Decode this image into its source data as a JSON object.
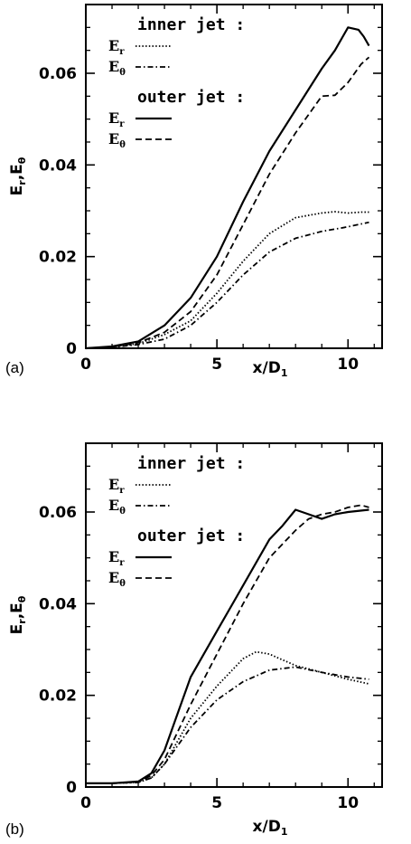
{
  "chart_data": [
    {
      "type": "line",
      "panel_label": "(a)",
      "xlabel": "x/D",
      "xlabel_sub": "1",
      "ylabel": "E_r,E_θ",
      "xlim": [
        0,
        11.3
      ],
      "ylim": [
        0,
        0.075
      ],
      "xticks": [
        0,
        5,
        10
      ],
      "yticks": [
        0,
        0.02,
        0.04,
        0.06
      ],
      "ytick_labels": [
        "0",
        "0.02",
        "0.04",
        "0.06"
      ],
      "xtick_labels": [
        "0",
        "5",
        "10"
      ],
      "legend": {
        "groups": [
          {
            "title": "inner jet :",
            "entries": [
              {
                "symbol": "E",
                "sub": "r",
                "style": "dotted"
              },
              {
                "symbol": "E",
                "sub": "θ",
                "style": "dashdot"
              }
            ]
          },
          {
            "title": "outer jet :",
            "entries": [
              {
                "symbol": "E",
                "sub": "r",
                "style": "solid"
              },
              {
                "symbol": "E",
                "sub": "θ",
                "style": "dashed"
              }
            ]
          }
        ]
      },
      "series": [
        {
          "group": "inner jet",
          "component": "E_r",
          "style": "dotted",
          "x": [
            0,
            1,
            2,
            3,
            4,
            5,
            6,
            7,
            8,
            9,
            9.5,
            10,
            10.5,
            10.8
          ],
          "y": [
            0,
            0.0003,
            0.001,
            0.003,
            0.006,
            0.012,
            0.019,
            0.025,
            0.0285,
            0.0295,
            0.0298,
            0.0295,
            0.0297,
            0.0297
          ]
        },
        {
          "group": "inner jet",
          "component": "E_θ",
          "style": "dashdot",
          "x": [
            0,
            1,
            2,
            3,
            4,
            5,
            6,
            7,
            8,
            9,
            10,
            10.8
          ],
          "y": [
            0,
            0.0002,
            0.0008,
            0.002,
            0.005,
            0.01,
            0.016,
            0.021,
            0.024,
            0.0255,
            0.0265,
            0.0275
          ]
        },
        {
          "group": "outer jet",
          "component": "E_r",
          "style": "solid",
          "x": [
            0,
            1,
            2,
            3,
            4,
            5,
            6,
            7,
            8,
            9,
            9.5,
            10,
            10.4,
            10.6,
            10.8
          ],
          "y": [
            0,
            0.0004,
            0.0015,
            0.005,
            0.011,
            0.02,
            0.032,
            0.043,
            0.052,
            0.061,
            0.065,
            0.07,
            0.0695,
            0.068,
            0.066
          ]
        },
        {
          "group": "outer jet",
          "component": "E_θ",
          "style": "dashed",
          "x": [
            0,
            1,
            2,
            3,
            4,
            5,
            6,
            7,
            8,
            8.5,
            9,
            9.5,
            10,
            10.5,
            10.8
          ],
          "y": [
            0,
            0.0003,
            0.0012,
            0.0035,
            0.008,
            0.016,
            0.027,
            0.038,
            0.047,
            0.051,
            0.055,
            0.0552,
            0.058,
            0.062,
            0.0635
          ]
        }
      ]
    },
    {
      "type": "line",
      "panel_label": "(b)",
      "xlabel": "x/D",
      "xlabel_sub": "1",
      "ylabel": "E_r,E_θ",
      "xlim": [
        0,
        11.3
      ],
      "ylim": [
        0,
        0.075
      ],
      "xticks": [
        0,
        5,
        10
      ],
      "yticks": [
        0,
        0.02,
        0.04,
        0.06
      ],
      "ytick_labels": [
        "0",
        "0.02",
        "0.04",
        "0.06"
      ],
      "xtick_labels": [
        "0",
        "5",
        "10"
      ],
      "legend": {
        "groups": [
          {
            "title": "inner jet :",
            "entries": [
              {
                "symbol": "E",
                "sub": "r",
                "style": "dotted"
              },
              {
                "symbol": "E",
                "sub": "θ",
                "style": "dashdot"
              }
            ]
          },
          {
            "title": "outer jet :",
            "entries": [
              {
                "symbol": "E",
                "sub": "r",
                "style": "solid"
              },
              {
                "symbol": "E",
                "sub": "θ",
                "style": "dashed"
              }
            ]
          }
        ]
      },
      "series": [
        {
          "group": "inner jet",
          "component": "E_r",
          "style": "dotted",
          "x": [
            0,
            1,
            2,
            2.5,
            3,
            3.5,
            4,
            5,
            6,
            6.5,
            7,
            8,
            9,
            10,
            10.8
          ],
          "y": [
            0.0008,
            0.0008,
            0.001,
            0.002,
            0.005,
            0.01,
            0.015,
            0.022,
            0.028,
            0.0295,
            0.029,
            0.0265,
            0.025,
            0.0235,
            0.0225
          ]
        },
        {
          "group": "inner jet",
          "component": "E_θ",
          "style": "dashdot",
          "x": [
            0,
            1,
            2,
            2.5,
            3,
            3.5,
            4,
            5,
            6,
            7,
            8,
            9,
            10,
            10.8
          ],
          "y": [
            0.0008,
            0.0008,
            0.001,
            0.002,
            0.005,
            0.009,
            0.013,
            0.019,
            0.023,
            0.0255,
            0.0262,
            0.025,
            0.024,
            0.0235
          ]
        },
        {
          "group": "outer jet",
          "component": "E_r",
          "style": "solid",
          "x": [
            0,
            1,
            2,
            2.5,
            3,
            3.5,
            4,
            5,
            6,
            7,
            7.5,
            8,
            8.5,
            9,
            9.5,
            10,
            10.8
          ],
          "y": [
            0.0008,
            0.0008,
            0.0012,
            0.003,
            0.008,
            0.016,
            0.024,
            0.034,
            0.044,
            0.054,
            0.057,
            0.0605,
            0.0595,
            0.0585,
            0.0595,
            0.06,
            0.0605
          ]
        },
        {
          "group": "outer jet",
          "component": "E_θ",
          "style": "dashed",
          "x": [
            0,
            1,
            2,
            2.5,
            3,
            3.5,
            4,
            5,
            6,
            7,
            8,
            8.5,
            9,
            9.5,
            10,
            10.5,
            10.8
          ],
          "y": [
            0.0008,
            0.0008,
            0.0011,
            0.0025,
            0.006,
            0.012,
            0.018,
            0.029,
            0.04,
            0.05,
            0.056,
            0.0585,
            0.0595,
            0.06,
            0.061,
            0.0615,
            0.061
          ]
        }
      ]
    }
  ]
}
